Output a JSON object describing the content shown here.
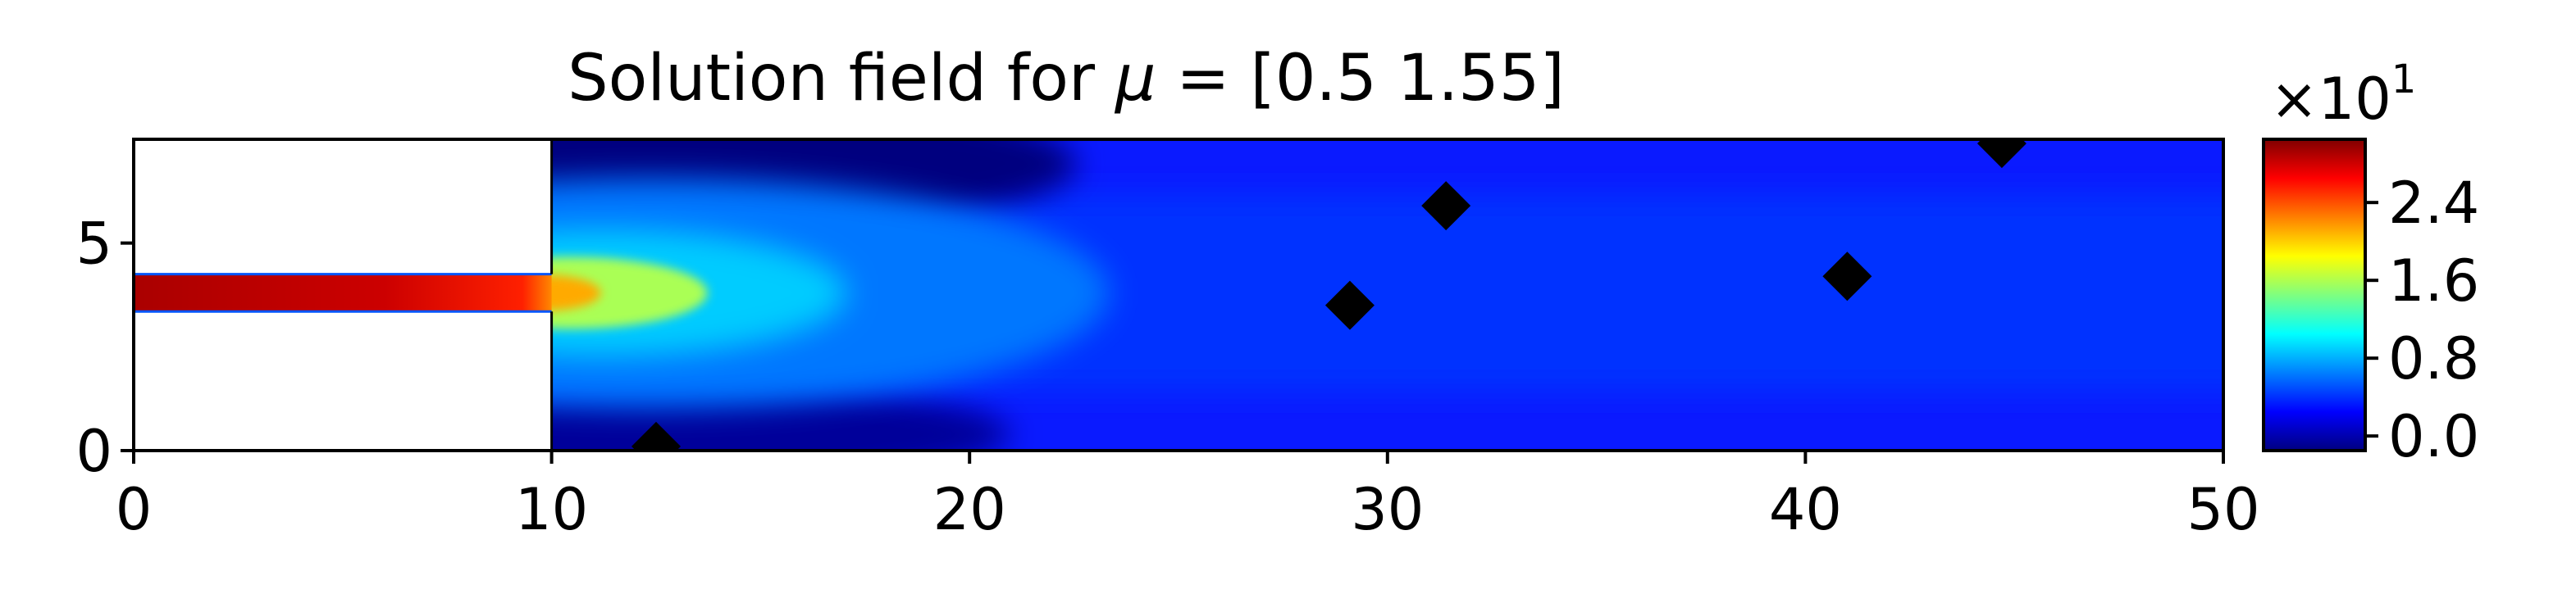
{
  "chart_data": {
    "type": "heatmap",
    "title": "Solution field for μ = [0.5  1.55]",
    "title_parts": {
      "prefix": "Solution field for ",
      "symbol": "μ",
      "suffix": " = [0.5  1.55]"
    },
    "xlabel": "",
    "ylabel": "",
    "xlim": [
      0,
      50
    ],
    "ylim": [
      0,
      7.5
    ],
    "x_ticks": [
      0,
      10,
      20,
      30,
      40,
      50
    ],
    "x_tick_labels": [
      "0",
      "10",
      "20",
      "30",
      "40",
      "50"
    ],
    "y_ticks": [
      0,
      5
    ],
    "y_tick_labels": [
      "0",
      "5"
    ],
    "colormap": "jet",
    "colorbar": {
      "range": [
        -0.15,
        3.05
      ],
      "ticks": [
        0.0,
        0.8,
        1.6,
        2.4
      ],
      "tick_labels": [
        "0.0",
        "0.8",
        "1.6",
        "2.4"
      ],
      "multiplier_base": "×10",
      "multiplier_exp": "1",
      "colors": [
        "#00007f",
        "#0000ff",
        "#007fff",
        "#00ffff",
        "#7fff7f",
        "#ffff00",
        "#ff7f00",
        "#ff0000",
        "#7f0000"
      ]
    },
    "inlet_channel": {
      "x": [
        0,
        10
      ],
      "y": [
        3.35,
        4.25
      ],
      "peak_value": 3.0
    },
    "markers": {
      "shape": "diamond",
      "color": "#000000",
      "points": [
        {
          "x": 12.5,
          "y": 0.1
        },
        {
          "x": 29.1,
          "y": 3.5
        },
        {
          "x": 31.4,
          "y": 5.9
        },
        {
          "x": 41.0,
          "y": 4.2
        },
        {
          "x": 44.7,
          "y": 7.4
        }
      ]
    }
  }
}
